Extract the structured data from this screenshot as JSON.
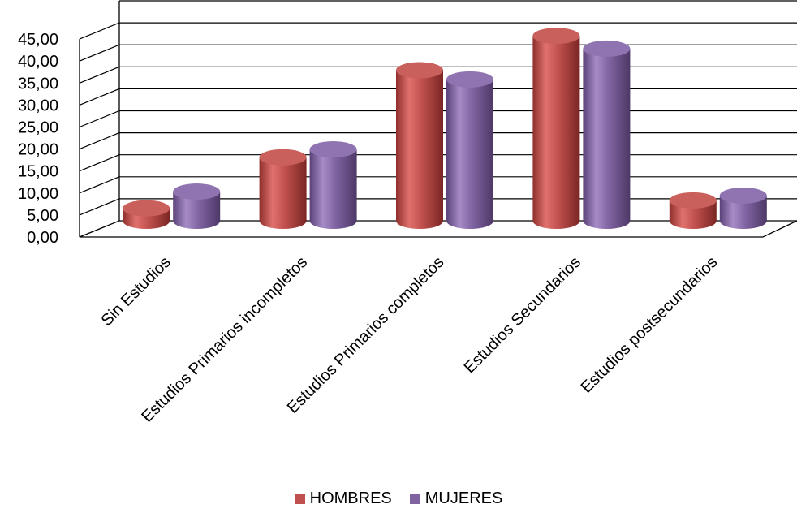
{
  "chart_data": {
    "type": "bar",
    "categories": [
      "Sin Estudios",
      "Estudios Primarios incompletos",
      "Estudios Primarios completos",
      "Estudios Secundarios",
      "Estudios postsecundarios"
    ],
    "series": [
      {
        "name": "HOMBRES",
        "color": "#c0504d",
        "values": [
          3.2,
          14.8,
          34.6,
          42.4,
          5.0
        ]
      },
      {
        "name": "MUJERES",
        "color": "#8064a2",
        "values": [
          7.0,
          16.6,
          32.5,
          39.5,
          6.1
        ]
      }
    ],
    "y_ticks": [
      "0,00",
      "5,00",
      "10,00",
      "15,00",
      "20,00",
      "25,00",
      "30,00",
      "35,00",
      "40,00",
      "45,00"
    ],
    "ylim": [
      0,
      50
    ],
    "title": "",
    "xlabel": "",
    "ylabel": "",
    "grid": true,
    "legend_position": "bottom"
  }
}
